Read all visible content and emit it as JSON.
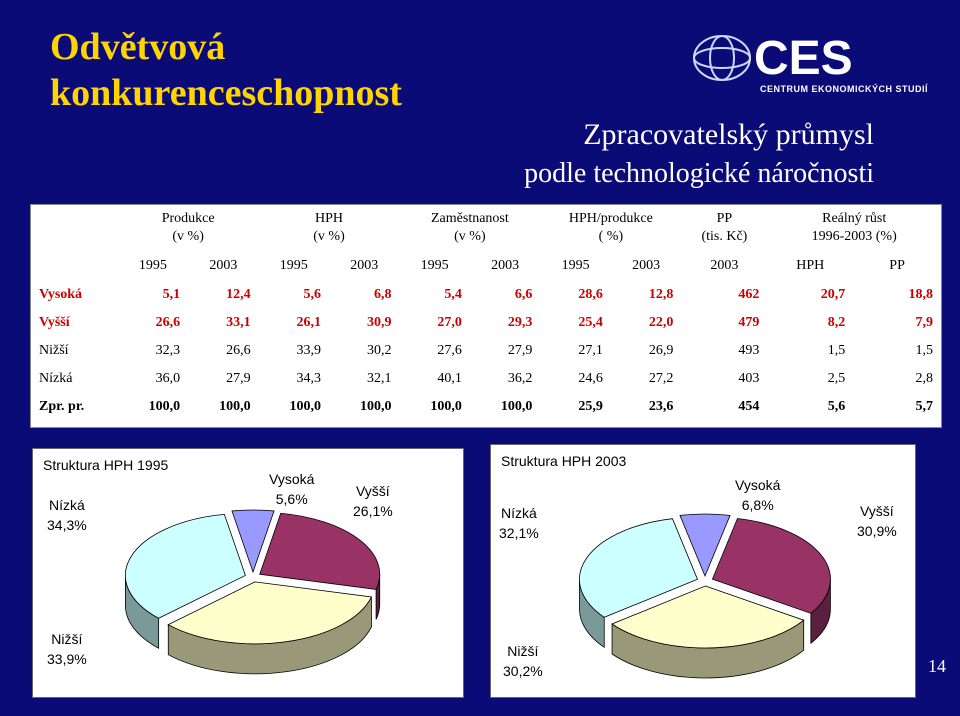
{
  "title": [
    "Odvětvová",
    "konkurenceschopnost"
  ],
  "logo": {
    "text": "CES",
    "subtitle": "CENTRUM EKONOMICKÝCH STUDIÍ"
  },
  "subtitle_line1": "Zpracovatelský průmysl",
  "subtitle_line2": "podle technologické náročnosti",
  "table": {
    "groups": [
      {
        "l1": "Produkce",
        "l2": "(v %)"
      },
      {
        "l1": "HPH",
        "l2": "(v %)"
      },
      {
        "l1": "Zaměstnanost",
        "l2": "(v %)"
      },
      {
        "l1": "HPH/produkce",
        "l2": "( %)"
      },
      {
        "l1": "PP",
        "l2": "(tis. Kč)"
      },
      {
        "l1": "Reálný růst",
        "l2": "1996-2003 (%)"
      }
    ],
    "years": [
      "1995",
      "2003",
      "1995",
      "2003",
      "1995",
      "2003",
      "1995",
      "2003",
      "2003",
      "HPH",
      "PP"
    ],
    "rows": [
      {
        "label": "Vysoká",
        "values": [
          "5,1",
          "12,4",
          "5,6",
          "6,8",
          "5,4",
          "6,6",
          "28,6",
          "12,8",
          "462",
          "20,7",
          "18,8"
        ]
      },
      {
        "label": "Vyšší",
        "values": [
          "26,6",
          "33,1",
          "26,1",
          "30,9",
          "27,0",
          "29,3",
          "25,4",
          "22,0",
          "479",
          "8,2",
          "7,9"
        ]
      },
      {
        "label": "Nižší",
        "values": [
          "32,3",
          "26,6",
          "33,9",
          "30,2",
          "27,6",
          "27,9",
          "27,1",
          "26,9",
          "493",
          "1,5",
          "1,5"
        ]
      },
      {
        "label": "Nízká",
        "values": [
          "36,0",
          "27,9",
          "34,3",
          "32,1",
          "40,1",
          "36,2",
          "24,6",
          "27,2",
          "403",
          "2,5",
          "2,8"
        ]
      },
      {
        "label": "Zpr. pr.",
        "values": [
          "100,0",
          "100,0",
          "100,0",
          "100,0",
          "100,0",
          "100,0",
          "25,9",
          "23,6",
          "454",
          "5,6",
          "5,7"
        ]
      }
    ]
  },
  "charts": {
    "left": {
      "title": "Struktura HPH 1995",
      "labels": {
        "vysoka": [
          "Vysoká",
          "5,6%"
        ],
        "vyssi": [
          "Vyšší",
          "26,1%"
        ],
        "nizka": [
          "Nízká",
          "34,3%"
        ],
        "nizsi": [
          "Nižší",
          "33,9%"
        ]
      }
    },
    "right": {
      "title": "Struktura HPH 2003",
      "labels": {
        "vysoka": [
          "Vysoká",
          "6,8%"
        ],
        "vyssi": [
          "Vyšší",
          "30,9%"
        ],
        "nizka": [
          "Nízká",
          "32,1%"
        ],
        "nizsi": [
          "Nižší",
          "30,2%"
        ]
      }
    }
  },
  "chart_data": [
    {
      "type": "pie",
      "title": "Struktura HPH 1995",
      "categories": [
        "Vysoká",
        "Vyšší",
        "Nižší",
        "Nízká"
      ],
      "values": [
        5.6,
        26.1,
        33.9,
        34.3
      ],
      "colors": [
        "#9999ff",
        "#993366",
        "#ffffcc",
        "#ccffff"
      ]
    },
    {
      "type": "pie",
      "title": "Struktura HPH 2003",
      "categories": [
        "Vysoká",
        "Vyšší",
        "Nižší",
        "Nízká"
      ],
      "values": [
        6.8,
        30.9,
        30.2,
        32.1
      ],
      "colors": [
        "#9999ff",
        "#993366",
        "#ffffcc",
        "#ccffff"
      ]
    }
  ],
  "page_number": "14"
}
